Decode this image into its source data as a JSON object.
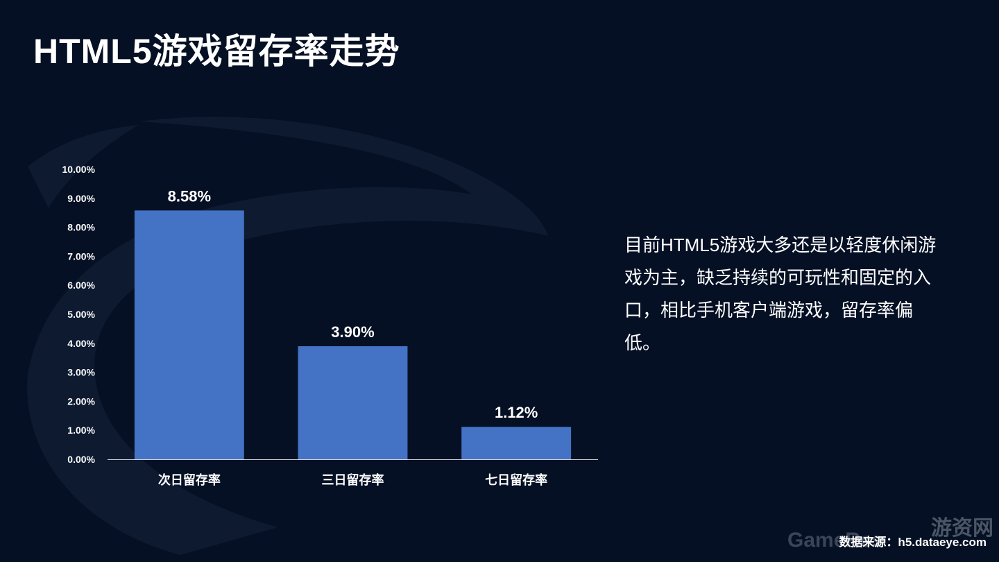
{
  "title": "HTML5游戏留存率走势",
  "description": "目前HTML5游戏大多还是以轻度休闲游戏为主，缺乏持续的可玩性和固定的入口，相比手机客户端游戏，留存率偏低。",
  "source": "数据来源：h5.dataeye.com",
  "watermark": {
    "text": "GameRes",
    "cn": "游资网"
  },
  "colors": {
    "background": "#051024",
    "bar": "#4472C4",
    "text": "#FFFFFF"
  },
  "chart_data": {
    "type": "bar",
    "categories": [
      "次日留存率",
      "三日留存率",
      "七日留存率"
    ],
    "values": [
      8.58,
      3.9,
      1.12
    ],
    "data_labels": [
      "8.58%",
      "3.90%",
      "1.12%"
    ],
    "ylim": [
      0,
      10
    ],
    "yticks": [
      "0.00%",
      "1.00%",
      "2.00%",
      "3.00%",
      "4.00%",
      "5.00%",
      "6.00%",
      "7.00%",
      "8.00%",
      "9.00%",
      "10.00%"
    ],
    "grid": false,
    "legend": "none"
  }
}
